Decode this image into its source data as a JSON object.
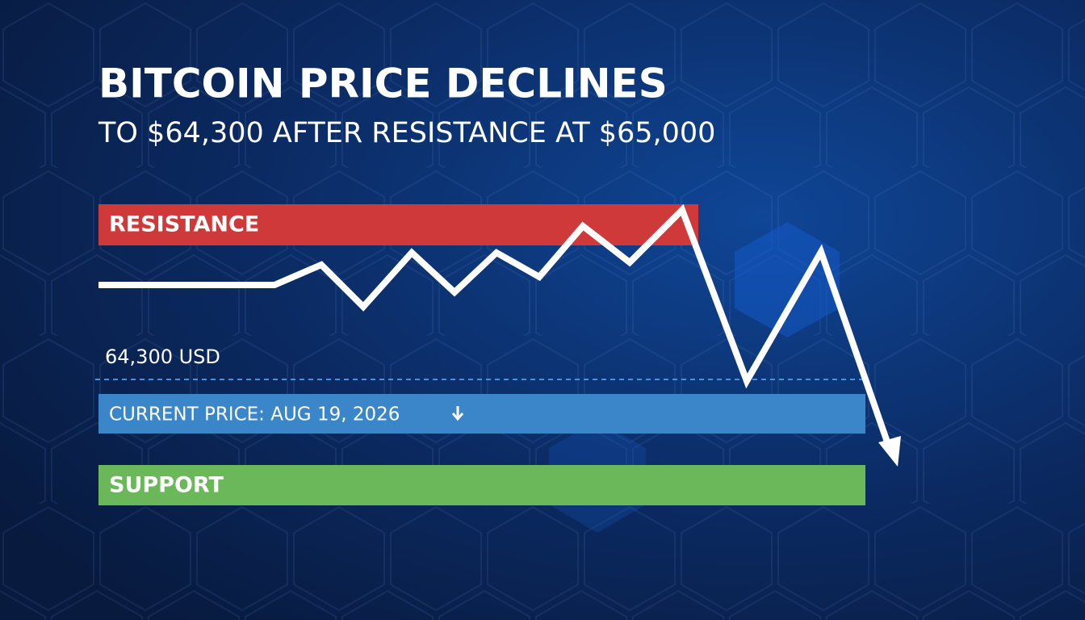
{
  "header": {
    "title": "BITCOIN PRICE DECLINES",
    "subtitle": "TO $64,300 AFTER RESISTANCE AT $65,000"
  },
  "levels": {
    "resistance": "RESISTANCE",
    "price_label": "64,300 USD",
    "current": "CURRENT PRICE: AUG 19, 2026",
    "support": "SUPPORT"
  }
}
